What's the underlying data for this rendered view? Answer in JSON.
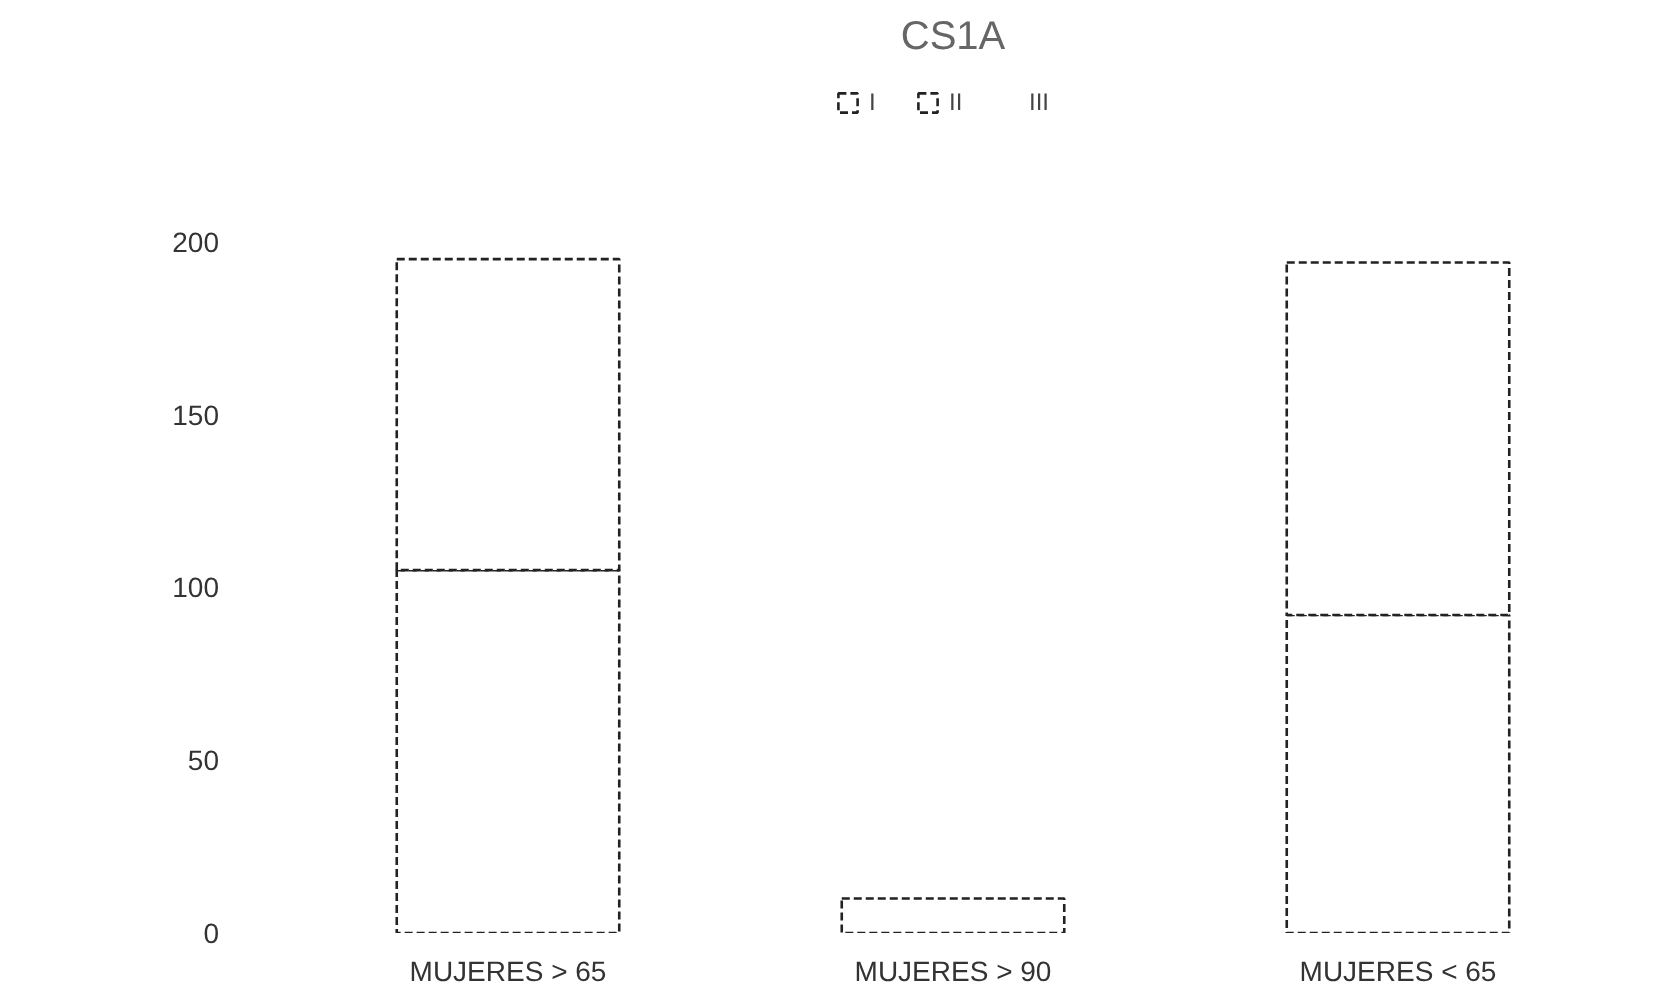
{
  "chart_data": {
    "type": "bar",
    "title": "CS1A",
    "stacked": true,
    "categories": [
      "MUJERES > 65",
      "MUJERES > 90",
      "MUJERES < 65"
    ],
    "series": [
      {
        "name": "I",
        "color": "#ffffff",
        "values": [
          105,
          10,
          92
        ]
      },
      {
        "name": "II",
        "color": "#ffffff",
        "values": [
          90,
          null,
          102
        ]
      },
      {
        "name": "III",
        "values": [
          null,
          null,
          null
        ]
      }
    ],
    "ylim": [
      0,
      200
    ],
    "yticks": [
      0,
      50,
      100,
      150,
      200
    ],
    "grid": false,
    "legend": "top"
  }
}
